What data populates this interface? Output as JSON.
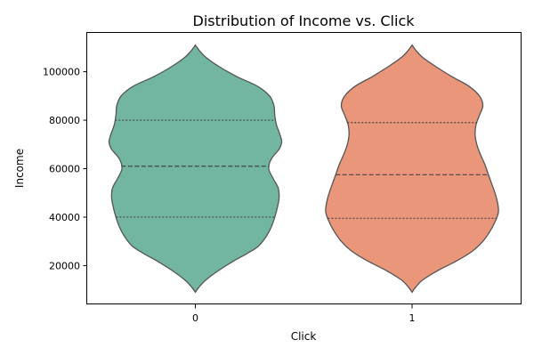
{
  "chart_data": {
    "type": "violin",
    "title": "Distribution of Income vs. Click",
    "xlabel": "Click",
    "ylabel": "Income",
    "categories": [
      "0",
      "1"
    ],
    "ylim": [
      4000,
      116000
    ],
    "yticks": [
      20000,
      40000,
      60000,
      80000,
      100000
    ],
    "ytick_labels": [
      "20000",
      "40000",
      "60000",
      "80000",
      "100000"
    ],
    "grid": false,
    "violins": [
      {
        "category": "0",
        "color": "#72b6a1",
        "quartiles": {
          "q1": 40000,
          "median": 61000,
          "q3": 80000
        },
        "range": [
          9000,
          111000
        ],
        "density_profile": [
          [
            9000,
            0.0
          ],
          [
            11000,
            0.04
          ],
          [
            14000,
            0.12
          ],
          [
            18000,
            0.27
          ],
          [
            22000,
            0.45
          ],
          [
            25000,
            0.6
          ],
          [
            28000,
            0.73
          ],
          [
            32000,
            0.82
          ],
          [
            36000,
            0.88
          ],
          [
            40000,
            0.92
          ],
          [
            44000,
            0.95
          ],
          [
            48000,
            0.97
          ],
          [
            52000,
            0.96
          ],
          [
            56000,
            0.9
          ],
          [
            60000,
            0.85
          ],
          [
            64000,
            0.88
          ],
          [
            68000,
            0.97
          ],
          [
            71000,
            1.0
          ],
          [
            74000,
            0.98
          ],
          [
            78000,
            0.94
          ],
          [
            82000,
            0.92
          ],
          [
            86000,
            0.91
          ],
          [
            90000,
            0.86
          ],
          [
            94000,
            0.72
          ],
          [
            98000,
            0.48
          ],
          [
            102000,
            0.28
          ],
          [
            106000,
            0.12
          ],
          [
            109000,
            0.04
          ],
          [
            111000,
            0.0
          ]
        ]
      },
      {
        "category": "1",
        "color": "#e9967a",
        "quartiles": {
          "q1": 39500,
          "median": 57500,
          "q3": 79000
        },
        "range": [
          9000,
          111000
        ],
        "density_profile": [
          [
            9000,
            0.0
          ],
          [
            11000,
            0.04
          ],
          [
            14000,
            0.12
          ],
          [
            18000,
            0.3
          ],
          [
            22000,
            0.52
          ],
          [
            26000,
            0.7
          ],
          [
            30000,
            0.82
          ],
          [
            34000,
            0.9
          ],
          [
            38000,
            0.96
          ],
          [
            42000,
            1.0
          ],
          [
            46000,
            0.99
          ],
          [
            50000,
            0.96
          ],
          [
            54000,
            0.92
          ],
          [
            58000,
            0.88
          ],
          [
            62000,
            0.84
          ],
          [
            66000,
            0.79
          ],
          [
            70000,
            0.75
          ],
          [
            74000,
            0.73
          ],
          [
            78000,
            0.74
          ],
          [
            82000,
            0.78
          ],
          [
            86000,
            0.82
          ],
          [
            90000,
            0.78
          ],
          [
            94000,
            0.66
          ],
          [
            98000,
            0.46
          ],
          [
            102000,
            0.28
          ],
          [
            106000,
            0.12
          ],
          [
            109000,
            0.04
          ],
          [
            111000,
            0.0
          ]
        ]
      }
    ]
  }
}
